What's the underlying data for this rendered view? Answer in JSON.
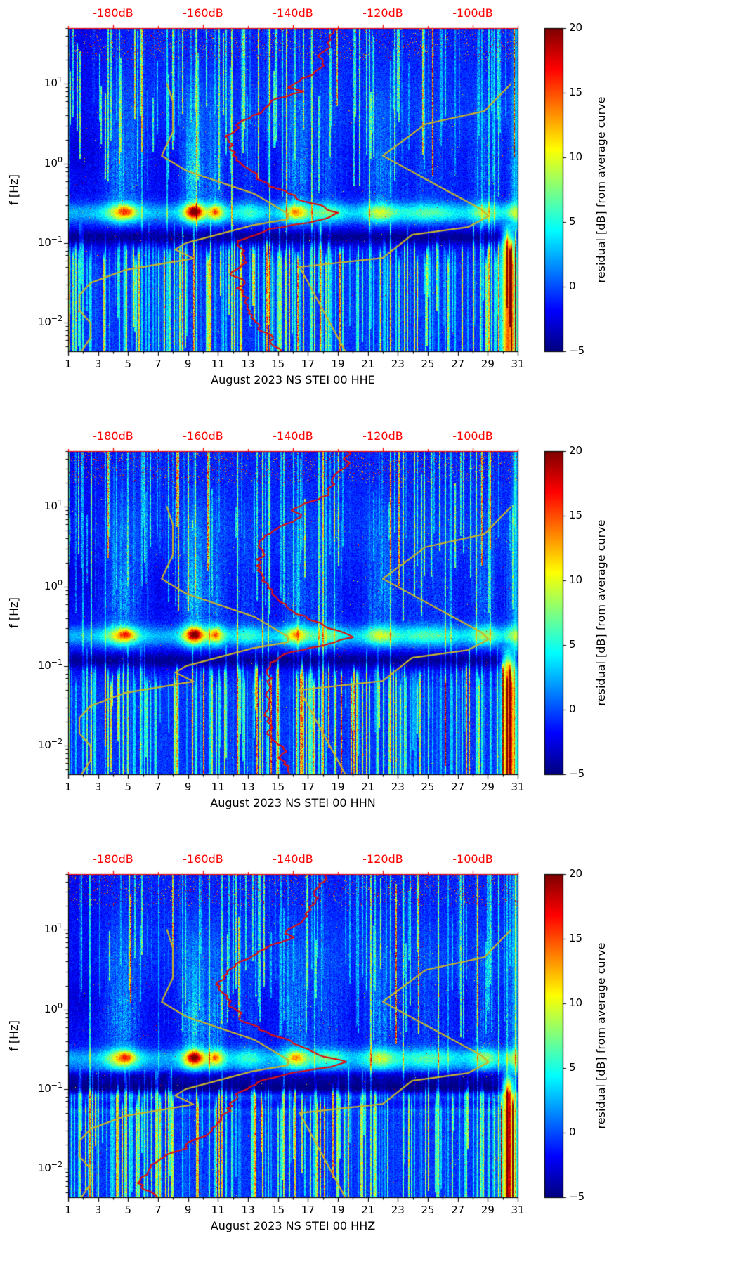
{
  "chart_data": {
    "type": "heatmap",
    "figure_kind": "three stacked seismic spectrograms of PSD residuals with Peterson noise-model (yellow) and median PSD (red) overlays",
    "shared": {
      "x_axis": {
        "tick_days": [
          1,
          3,
          5,
          7,
          9,
          11,
          13,
          15,
          17,
          19,
          21,
          23,
          25,
          27,
          29,
          31
        ],
        "tick_labels": [
          "1",
          "3",
          "5",
          "7",
          "9",
          "11",
          "13",
          "15",
          "17",
          "19",
          "21",
          "23",
          "25",
          "27",
          "29",
          "31"
        ],
        "range_days": [
          1,
          31
        ]
      },
      "y_axis": {
        "label": "f [Hz]",
        "base_label": "10",
        "tick_exponents": [
          1,
          0,
          -1,
          -2
        ],
        "tick_exponent_labels": [
          "1",
          "0",
          "−1",
          "−2"
        ],
        "range_hz": [
          0.0044,
          50
        ]
      },
      "top_axis": {
        "tick_labels": [
          "-180dB",
          "-160dB",
          "-140dB",
          "-120dB",
          "-100dB"
        ],
        "tick_values_db": [
          -180,
          -160,
          -140,
          -120,
          -100
        ],
        "range_db": [
          -190,
          -90
        ],
        "color": "#ff0000"
      },
      "colorbar": {
        "label": "residual [dB] from average curve",
        "tick_values": [
          20,
          15,
          10,
          5,
          0,
          -5
        ],
        "tick_labels": [
          "20",
          "15",
          "10",
          "5",
          "0",
          "−5"
        ],
        "range": [
          -5,
          20
        ],
        "colormap": "jet"
      },
      "median_curve_color": "#dd1111",
      "model_curves": {
        "color": "#c7b42c",
        "nlnm_db": [
          [
            10,
            -168
          ],
          [
            5.9,
            -166.7
          ],
          [
            2.5,
            -166.7
          ],
          [
            1.25,
            -169.2
          ],
          [
            0.81,
            -163.7
          ],
          [
            0.417,
            -148.6
          ],
          [
            0.233,
            -141.1
          ],
          [
            0.2,
            -141.1
          ],
          [
            0.167,
            -149
          ],
          [
            0.1,
            -163.8
          ],
          [
            0.083,
            -166.2
          ],
          [
            0.064,
            -162.1
          ],
          [
            0.0457,
            -177.5
          ],
          [
            0.0316,
            -185
          ],
          [
            0.0222,
            -187.5
          ],
          [
            0.0143,
            -187.5
          ],
          [
            0.0099,
            -185
          ],
          [
            0.0065,
            -185
          ],
          [
            0.0044,
            -187
          ]
        ],
        "nhnm_db": [
          [
            10,
            -91.5
          ],
          [
            4.55,
            -97.4
          ],
          [
            3.13,
            -110.5
          ],
          [
            1.25,
            -120
          ],
          [
            0.263,
            -98
          ],
          [
            0.217,
            -96.5
          ],
          [
            0.159,
            -101
          ],
          [
            0.127,
            -113.5
          ],
          [
            0.065,
            -120
          ],
          [
            0.05,
            -138.5
          ],
          [
            0.0044,
            -128.4
          ]
        ]
      }
    },
    "synthesis": {
      "microseism_band_center_hz": 0.24,
      "dark_band_hz": [
        0.09,
        0.15
      ],
      "low_freq_red_blob_day": 30.35,
      "storms": [
        {
          "day": 4.6,
          "amp": 8,
          "w": 1.1
        },
        {
          "day": 9.4,
          "amp": 11,
          "w": 0.8
        },
        {
          "day": 10.9,
          "amp": 7,
          "w": 0.6
        },
        {
          "day": 13,
          "amp": 3,
          "w": 1.0
        },
        {
          "day": 16.2,
          "amp": 7,
          "w": 0.9
        },
        {
          "day": 18.3,
          "amp": 4,
          "w": 1.2
        },
        {
          "day": 21.8,
          "amp": 6,
          "w": 1.0
        },
        {
          "day": 25,
          "amp": 3.5,
          "w": 2.0
        },
        {
          "day": 28.8,
          "amp": 5,
          "w": 0.9
        },
        {
          "day": 30.6,
          "amp": 4,
          "w": 0.5
        }
      ],
      "hot_spots": [
        {
          "day": 4.9,
          "amp": 5.5,
          "w": 0.5
        },
        {
          "day": 9.45,
          "amp": 7,
          "w": 0.45
        },
        {
          "day": 10.8,
          "amp": 4,
          "w": 0.3
        },
        {
          "day": 16.2,
          "amp": 3,
          "w": 0.4
        }
      ]
    },
    "panels": [
      {
        "channel": "HHE",
        "xlabel": "August 2023 NS STEI 00 HHE",
        "median_psd_db": [
          [
            50,
            -130
          ],
          [
            35,
            -130.5
          ],
          [
            25,
            -132
          ],
          [
            18,
            -133.5
          ],
          [
            14,
            -134
          ],
          [
            11,
            -139
          ],
          [
            9,
            -141
          ],
          [
            8,
            -138.5
          ],
          [
            6.5,
            -143
          ],
          [
            5,
            -147
          ],
          [
            4,
            -150
          ],
          [
            3,
            -153
          ],
          [
            2.2,
            -154.5
          ],
          [
            1.6,
            -154
          ],
          [
            1.1,
            -152.5
          ],
          [
            0.8,
            -150
          ],
          [
            0.6,
            -147
          ],
          [
            0.45,
            -143
          ],
          [
            0.35,
            -139
          ],
          [
            0.3,
            -135.5
          ],
          [
            0.27,
            -133
          ],
          [
            0.24,
            -130.5
          ],
          [
            0.21,
            -133
          ],
          [
            0.18,
            -139
          ],
          [
            0.15,
            -146
          ],
          [
            0.12,
            -150.5
          ],
          [
            0.1,
            -152
          ],
          [
            0.085,
            -150.5
          ],
          [
            0.07,
            -151
          ],
          [
            0.06,
            -150
          ],
          [
            0.05,
            -151
          ],
          [
            0.04,
            -152
          ],
          [
            0.033,
            -150.5
          ],
          [
            0.027,
            -151.5
          ],
          [
            0.022,
            -150
          ],
          [
            0.018,
            -149.5
          ],
          [
            0.014,
            -148.5
          ],
          [
            0.011,
            -147.5
          ],
          [
            0.009,
            -146.5
          ],
          [
            0.007,
            -145.5
          ],
          [
            0.0055,
            -144.5
          ],
          [
            0.0044,
            -143.5
          ]
        ]
      },
      {
        "channel": "HHN",
        "xlabel": "August 2023 NS STEI 00 HHN",
        "median_psd_db": [
          [
            50,
            -127
          ],
          [
            35,
            -128
          ],
          [
            25,
            -130
          ],
          [
            18,
            -131.5
          ],
          [
            14,
            -132.5
          ],
          [
            11,
            -137
          ],
          [
            9,
            -138.5
          ],
          [
            8,
            -136.5
          ],
          [
            6.5,
            -140.5
          ],
          [
            5,
            -143.5
          ],
          [
            4,
            -145.5
          ],
          [
            3,
            -147.5
          ],
          [
            2.2,
            -148.5
          ],
          [
            1.6,
            -148
          ],
          [
            1.1,
            -146.5
          ],
          [
            0.8,
            -144.5
          ],
          [
            0.6,
            -141.5
          ],
          [
            0.45,
            -137.5
          ],
          [
            0.35,
            -133.5
          ],
          [
            0.3,
            -130.5
          ],
          [
            0.26,
            -127.5
          ],
          [
            0.23,
            -126
          ],
          [
            0.2,
            -130
          ],
          [
            0.17,
            -136
          ],
          [
            0.14,
            -142
          ],
          [
            0.11,
            -145.5
          ],
          [
            0.09,
            -144.5
          ],
          [
            0.075,
            -143.5
          ],
          [
            0.06,
            -145
          ],
          [
            0.05,
            -145.5
          ],
          [
            0.04,
            -146.5
          ],
          [
            0.03,
            -145.5
          ],
          [
            0.024,
            -146.5
          ],
          [
            0.019,
            -146
          ],
          [
            0.015,
            -145
          ],
          [
            0.012,
            -144
          ],
          [
            0.009,
            -143
          ],
          [
            0.007,
            -142
          ],
          [
            0.0055,
            -141
          ],
          [
            0.0044,
            -140
          ]
        ]
      },
      {
        "channel": "HHZ",
        "xlabel": "August 2023 NS STEI 00 HHZ",
        "median_psd_db": [
          [
            50,
            -132
          ],
          [
            35,
            -133
          ],
          [
            25,
            -134.5
          ],
          [
            18,
            -136
          ],
          [
            14,
            -137
          ],
          [
            11,
            -141.5
          ],
          [
            9,
            -143.5
          ],
          [
            8,
            -141
          ],
          [
            6.5,
            -146
          ],
          [
            5,
            -149.5
          ],
          [
            4,
            -152.5
          ],
          [
            3,
            -155.5
          ],
          [
            2.2,
            -157
          ],
          [
            1.6,
            -156.5
          ],
          [
            1.1,
            -155
          ],
          [
            0.8,
            -152.5
          ],
          [
            0.6,
            -149
          ],
          [
            0.45,
            -144.5
          ],
          [
            0.35,
            -140
          ],
          [
            0.3,
            -136
          ],
          [
            0.27,
            -133
          ],
          [
            0.24,
            -129.5
          ],
          [
            0.22,
            -128
          ],
          [
            0.19,
            -133
          ],
          [
            0.16,
            -140
          ],
          [
            0.13,
            -146
          ],
          [
            0.1,
            -149.5
          ],
          [
            0.08,
            -151.5
          ],
          [
            0.065,
            -152.5
          ],
          [
            0.05,
            -154
          ],
          [
            0.04,
            -155.5
          ],
          [
            0.03,
            -158
          ],
          [
            0.024,
            -160.5
          ],
          [
            0.019,
            -163.5
          ],
          [
            0.015,
            -166.5
          ],
          [
            0.012,
            -169
          ],
          [
            0.009,
            -171.5
          ],
          [
            0.007,
            -172.5
          ],
          [
            0.0055,
            -172
          ],
          [
            0.0044,
            -170.5
          ]
        ]
      }
    ]
  }
}
